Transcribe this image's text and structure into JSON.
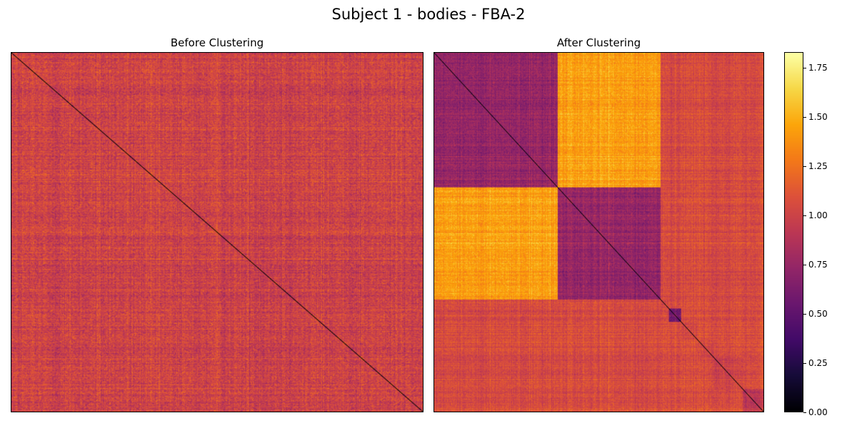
{
  "chart_data": [
    {
      "type": "heatmap",
      "title": "Before Clustering",
      "suptitle": "Subject 1 - bodies - FBA-2",
      "n": 400,
      "diagonal_value": 0.0,
      "off_diagonal_mean": 1.0,
      "off_diagonal_spread": 0.25,
      "structure": "unordered; no visible block structure"
    },
    {
      "type": "heatmap",
      "title": "After Clustering",
      "n": 400,
      "diagonal_value": 0.0,
      "clusters": [
        {
          "start": 0,
          "end": 150,
          "within_value": 0.75
        },
        {
          "start": 150,
          "end": 275,
          "within_value": 0.75
        },
        {
          "start": 275,
          "end": 285,
          "within_value": 1.0
        },
        {
          "start": 285,
          "end": 300,
          "within_value": 0.6
        },
        {
          "start": 300,
          "end": 320,
          "within_value": 1.0
        },
        {
          "start": 320,
          "end": 340,
          "within_value": 1.0
        },
        {
          "start": 340,
          "end": 375,
          "within_value": 1.0
        },
        {
          "start": 375,
          "end": 400,
          "within_value": 0.9
        }
      ],
      "between_cluster_1_2_value": 1.45,
      "between_other_value": 1.05
    }
  ],
  "colorbar": {
    "colormap": "inferno",
    "vmin": 0.0,
    "vmax": 1.83,
    "ticks": [
      "0.00",
      "0.25",
      "0.50",
      "0.75",
      "1.00",
      "1.25",
      "1.50",
      "1.75"
    ],
    "tick_values": [
      0.0,
      0.25,
      0.5,
      0.75,
      1.0,
      1.25,
      1.5,
      1.75
    ]
  }
}
